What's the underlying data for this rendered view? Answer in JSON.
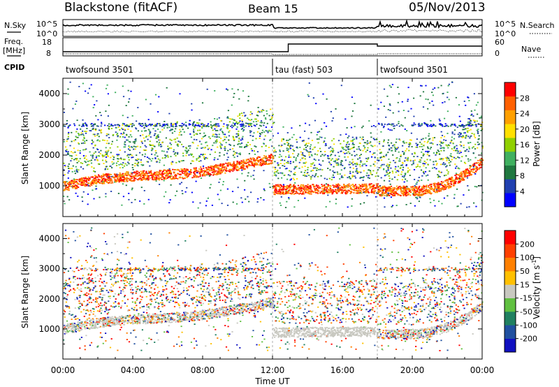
{
  "header": {
    "station": "Blackstone (fitACF)",
    "beam": "Beam 15",
    "date": "05/Nov/2013"
  },
  "top_labels": {
    "nsky": "N.Sky",
    "freq_line1": "Freq.",
    "freq_line2": "[MHz]",
    "cpid": "CPID",
    "nsearch": "N.Search",
    "nave": "Nave",
    "noise_tick_high": "10^5",
    "noise_tick_low": "10^0",
    "freq_tick_high": "18",
    "freq_tick_low": "8",
    "nave_tick_high": "60",
    "nave_tick_low": "0"
  },
  "cpid_segments": [
    {
      "label": "twofsound 3501",
      "start_hour": 0
    },
    {
      "label": "tau (fast) 503",
      "start_hour": 12
    },
    {
      "label": "twofsound 3501",
      "start_hour": 18
    }
  ],
  "colors": {
    "power": [
      "#0000ff",
      "#2040b0",
      "#207840",
      "#40b060",
      "#90d000",
      "#ffe000",
      "#ffa000",
      "#ff6000",
      "#ff0000"
    ],
    "velocity": [
      "#1010c0",
      "#2050a0",
      "#208060",
      "#60c040",
      "#c8c8c0",
      "#ffc000",
      "#ff8000",
      "#ff4000",
      "#ff0000"
    ]
  },
  "chart_data": [
    {
      "type": "heatmap",
      "name": "power",
      "ylabel": "Slant Range [km]",
      "xlim": [
        0,
        24
      ],
      "ylim": [
        0,
        4500
      ],
      "yticks": [
        1000,
        2000,
        3000,
        4000
      ],
      "colorbar_label": "Power [dB]",
      "colorbar_ticks": [
        "28",
        "24",
        "20",
        "16",
        "12",
        "8",
        "4"
      ]
    },
    {
      "type": "heatmap",
      "name": "velocity",
      "ylabel": "Slant Range [km]",
      "xlim": [
        0,
        24
      ],
      "ylim": [
        0,
        4500
      ],
      "yticks": [
        1000,
        2000,
        3000,
        4000
      ],
      "colorbar_label": "Velocity [m s-1]",
      "colorbar_label_main": "Velocity [m s",
      "colorbar_label_sup": "-1",
      "colorbar_label_end": "]",
      "colorbar_ticks": [
        "200",
        "100",
        "50",
        "15",
        "-15",
        "-50",
        "-100",
        "-200"
      ]
    }
  ],
  "xaxis": {
    "label": "Time UT",
    "ticks": [
      {
        "hour": 0,
        "label": "00:00"
      },
      {
        "hour": 4,
        "label": "04:00"
      },
      {
        "hour": 8,
        "label": "08:00"
      },
      {
        "hour": 12,
        "label": "12:00"
      },
      {
        "hour": 16,
        "label": "16:00"
      },
      {
        "hour": 20,
        "label": "20:00"
      },
      {
        "hour": 24,
        "label": "00:00"
      }
    ]
  }
}
